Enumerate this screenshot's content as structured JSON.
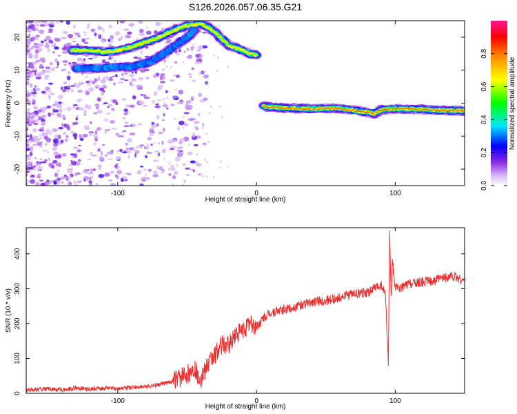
{
  "title": "S126.2026.057.06.35.G21",
  "chart_data": [
    {
      "type": "heatmap",
      "xlabel": "Height of straight line (km)",
      "ylabel": "Frequency (Hz)",
      "xlim": [
        -166,
        150
      ],
      "ylim": [
        -25,
        25
      ],
      "x_ticks": [
        -100,
        0,
        100
      ],
      "x_tick_labels": [
        "-100",
        "0",
        "100"
      ],
      "y_ticks": [
        -20,
        -10,
        0,
        10,
        20
      ],
      "y_tick_labels": [
        "-20",
        "-10",
        "0",
        "10",
        "20"
      ],
      "colorbar": {
        "label": "Normalized spectral amplitude",
        "range": [
          0,
          1
        ],
        "ticks": [
          0,
          0.2,
          0.4,
          0.6,
          0.8
        ],
        "tick_labels": [
          "0.0",
          "0.2",
          "0.4",
          "0.6",
          "0.8"
        ],
        "colors": [
          "#ffffff",
          "#8a2be2",
          "#0000ff",
          "#00e5ff",
          "#00ff00",
          "#ffff00",
          "#ff8c00",
          "#ff0000",
          "#ff1493"
        ]
      },
      "ridges": [
        {
          "label": "",
          "points": [
            [
              -133,
              16
            ],
            [
              -120,
              16
            ],
            [
              -110,
              15.5
            ],
            [
              -100,
              16
            ],
            [
              -90,
              17
            ],
            [
              -80,
              18.5
            ],
            [
              -70,
              20
            ],
            [
              -60,
              22
            ],
            [
              -50,
              23.5
            ],
            [
              -40,
              24
            ],
            [
              -35,
              23
            ],
            [
              -30,
              21.5
            ],
            [
              -25,
              19.5
            ],
            [
              -20,
              17.5
            ],
            [
              -10,
              16
            ],
            [
              -5,
              15
            ],
            [
              0,
              14.5
            ]
          ],
          "amplitude": 0.55
        },
        {
          "label": "",
          "points": [
            [
              -130,
              10.5
            ],
            [
              -115,
              10.5
            ],
            [
              -100,
              11
            ],
            [
              -90,
              11
            ],
            [
              -80,
              12
            ],
            [
              -70,
              14
            ],
            [
              -60,
              17
            ],
            [
              -50,
              20
            ],
            [
              -45,
              22
            ]
          ],
          "amplitude": 0.3
        },
        {
          "label": "",
          "points": [
            [
              5,
              -1
            ],
            [
              20,
              -1.5
            ],
            [
              40,
              -1.7
            ],
            [
              60,
              -1.6
            ],
            [
              75,
              -2.5
            ],
            [
              85,
              -3.2
            ],
            [
              90,
              -2
            ],
            [
              100,
              -1.7
            ],
            [
              115,
              -1.8
            ],
            [
              130,
              -2.2
            ],
            [
              150,
              -2.3
            ]
          ],
          "amplitude": 0.9
        }
      ]
    },
    {
      "type": "line",
      "xlabel": "Height of straight line (km)",
      "ylabel": "SNR (10 * v/v)",
      "xlim": [
        -166,
        150
      ],
      "ylim": [
        0,
        475
      ],
      "x_ticks": [
        -100,
        0,
        100
      ],
      "x_tick_labels": [
        "-100",
        "0",
        "100"
      ],
      "y_ticks": [
        0,
        100,
        200,
        300,
        400
      ],
      "y_tick_labels": [
        "0",
        "100",
        "200",
        "300",
        "400"
      ],
      "color": "#e83030",
      "series": [
        {
          "x": [
            -166,
            -150,
            -140,
            -130,
            -120,
            -110,
            -100,
            -90,
            -80,
            -70,
            -60,
            -50,
            -45,
            -40,
            -35,
            -30,
            -25,
            -20,
            -15,
            -10,
            -5,
            0,
            5,
            10,
            20,
            30,
            40,
            50,
            60,
            70,
            80,
            85,
            90,
            93,
            95,
            96,
            97,
            98,
            100,
            105,
            110,
            120,
            130,
            140,
            145,
            150
          ],
          "values": [
            10,
            12,
            10,
            15,
            12,
            15,
            14,
            16,
            20,
            25,
            35,
            55,
            70,
            40,
            80,
            110,
            140,
            135,
            170,
            180,
            200,
            190,
            215,
            230,
            240,
            250,
            262,
            265,
            275,
            285,
            290,
            300,
            310,
            280,
            80,
            470,
            270,
            380,
            300,
            305,
            315,
            320,
            325,
            335,
            330,
            320
          ]
        }
      ]
    }
  ]
}
